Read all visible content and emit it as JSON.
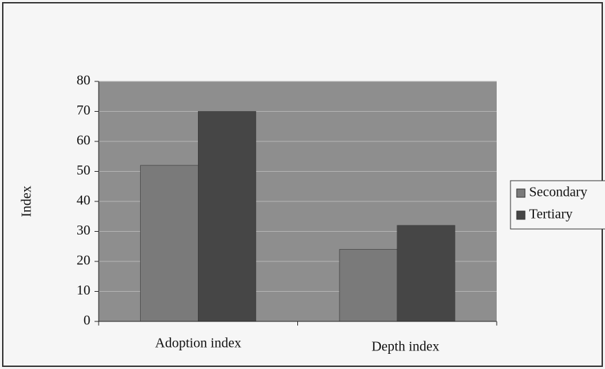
{
  "chart_data": {
    "type": "bar",
    "categories": [
      "Adoption index",
      "Depth index"
    ],
    "series": [
      {
        "name": "Secondary",
        "color": "#7a7a7a",
        "values": [
          52,
          24
        ]
      },
      {
        "name": "Tertiary",
        "color": "#464646",
        "values": [
          70,
          32
        ]
      }
    ],
    "y_label": "Index",
    "ylim": [
      0,
      80
    ],
    "yticks": [
      0,
      10,
      20,
      30,
      40,
      50,
      60,
      70,
      80
    ],
    "grid": true,
    "legend": "right",
    "plot_background": "#8e8e8e"
  }
}
